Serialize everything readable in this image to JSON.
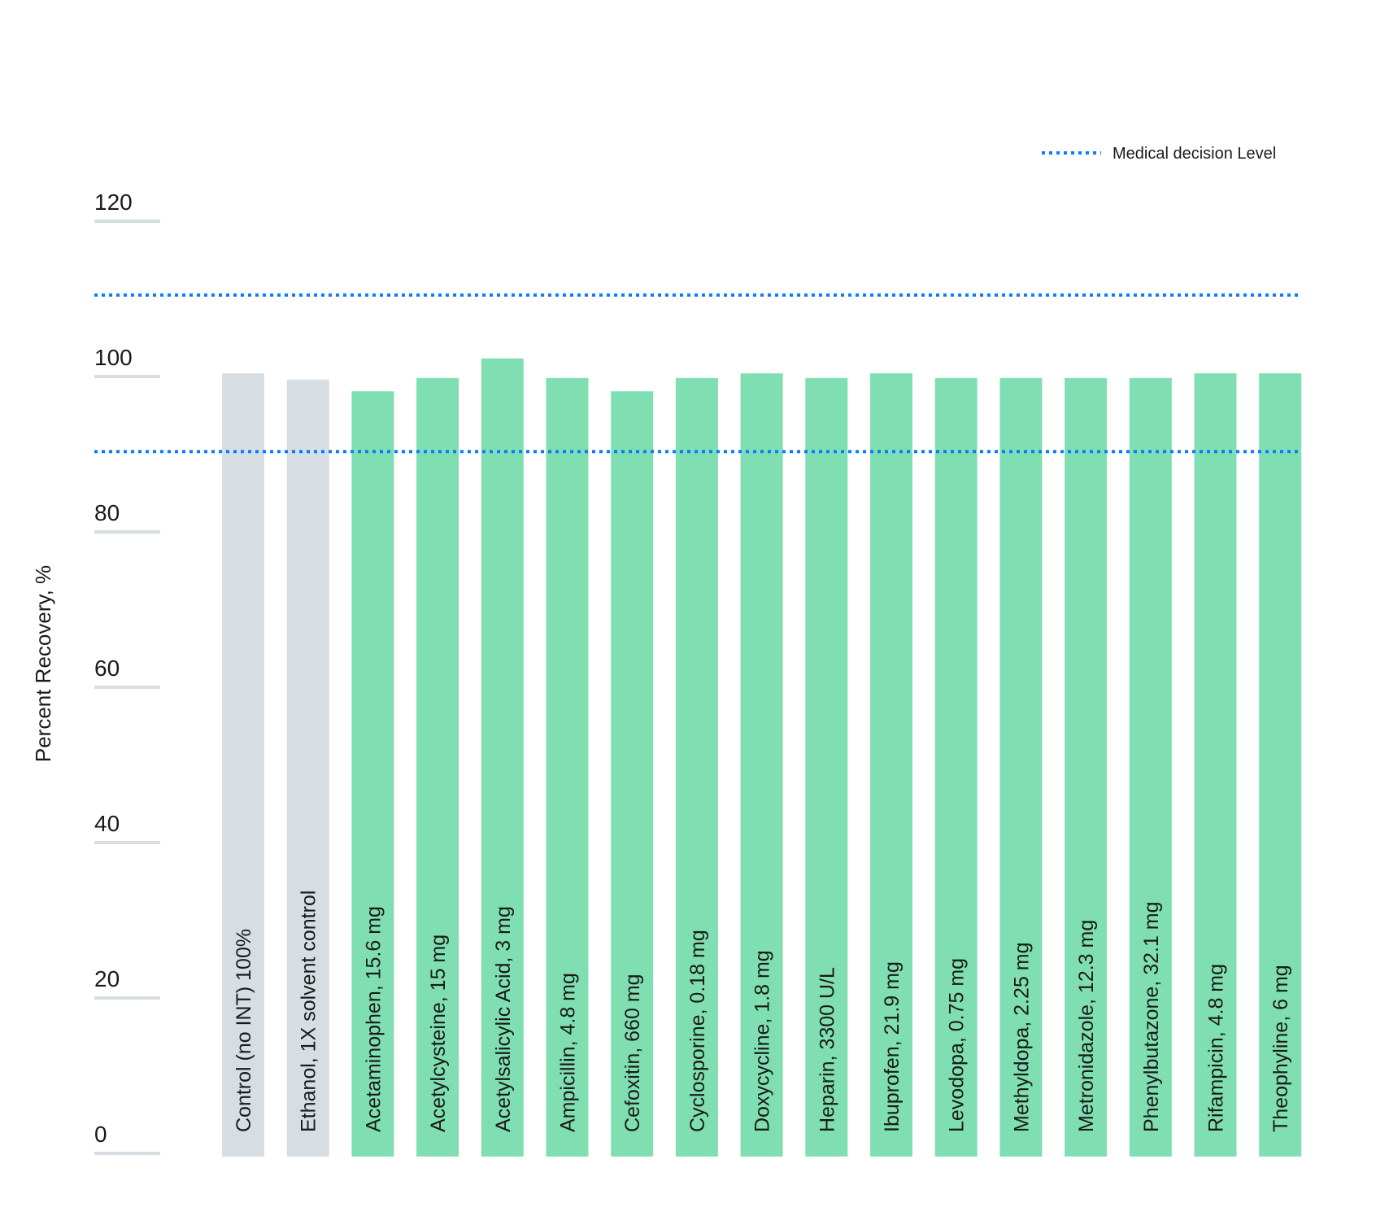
{
  "chart_data": {
    "type": "bar",
    "title": "",
    "xlabel": "",
    "ylabel": "Percent  Recovery, %",
    "ylim": [
      0,
      120
    ],
    "yticks": [
      0,
      20,
      40,
      60,
      80,
      100,
      120
    ],
    "grid": false,
    "legend": {
      "placement": "top-right",
      "entries": [
        {
          "label": "Medical decision Level",
          "style": "dotted",
          "color": "#0a7cff"
        }
      ]
    },
    "categories": [
      "Control (no INT) 100%",
      "Ethanol, 1X solvent control",
      "Acetaminophen, 15.6 mg",
      "Acetylcysteine, 15 mg",
      "Acetylsalicylic Acid, 3 mg",
      "Ampicillin, 4.8 mg",
      "Cefoxitin, 660 mg",
      "Cyclosporine, 0.18 mg",
      "Doxycycline, 1.8 mg",
      "Heparin, 3300 U/L",
      "Ibuprofen, 21.9 mg",
      "Levodopa, 0.75 mg",
      "Methyldopa, 2.25 mg",
      "Metronidazole, 12.3 mg",
      "Phenylbutazone, 32.1 mg",
      "Rifampicin, 4.8 mg",
      "Theophyline, 6 mg"
    ],
    "values": [
      100,
      99.2,
      97.7,
      99.4,
      101.9,
      99.4,
      97.7,
      99.4,
      100,
      99.4,
      100,
      99.4,
      99.4,
      99.4,
      99.4,
      100,
      100
    ],
    "bar_groups": [
      "control",
      "control",
      "test",
      "test",
      "test",
      "test",
      "test",
      "test",
      "test",
      "test",
      "test",
      "test",
      "test",
      "test",
      "test",
      "test",
      "test"
    ],
    "reference_lines": [
      {
        "name": "Medical decision Level",
        "value": 110
      },
      {
        "name": "Medical decision Level",
        "value": 90
      }
    ],
    "colors": {
      "control": "#d6dee3",
      "test": "#80dfb2",
      "reference": "#0a7cff",
      "tick": "#d6dee3"
    }
  }
}
